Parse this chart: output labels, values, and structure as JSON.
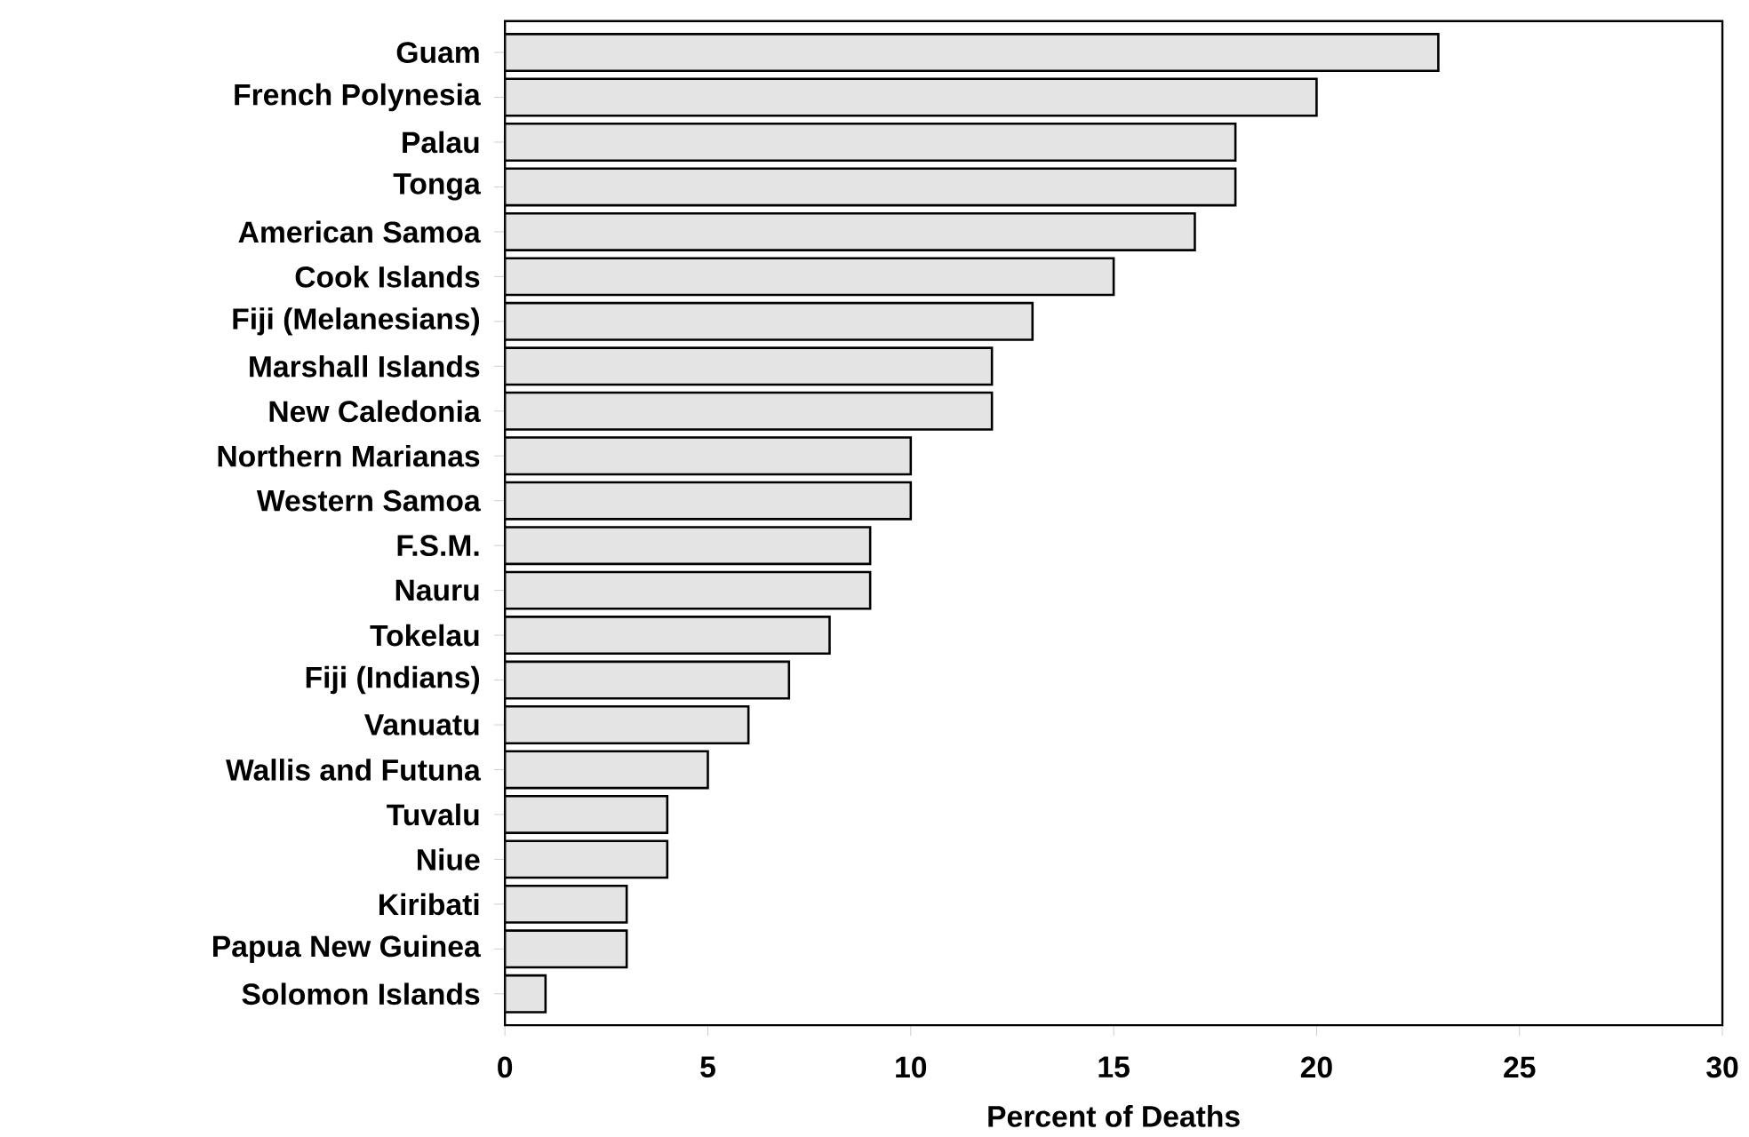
{
  "chart_data": {
    "type": "bar",
    "orientation": "horizontal",
    "xlabel": "Percent of Deaths",
    "categories": [
      "Guam",
      "French Polynesia",
      "Palau",
      "Tonga",
      "American Samoa",
      "Cook Islands",
      "Fiji (Melanesians)",
      "Marshall Islands",
      "New Caledonia",
      "Northern Marianas",
      "Western Samoa",
      "F.S.M.",
      "Nauru",
      "Tokelau",
      "Fiji (Indians)",
      "Vanuatu",
      "Wallis and Futuna",
      "Tuvalu",
      "Niue",
      "Kiribati",
      "Papua New Guinea",
      "Solomon Islands"
    ],
    "values": [
      23,
      20,
      18,
      18,
      17,
      15,
      13,
      12,
      12,
      10,
      10,
      9,
      9,
      8,
      7,
      6,
      5,
      4,
      4,
      3,
      3,
      1
    ],
    "color": "#e4e4e4",
    "xlim": [
      0,
      30
    ],
    "xticks": [
      0,
      5,
      10,
      15,
      20,
      25,
      30
    ]
  }
}
